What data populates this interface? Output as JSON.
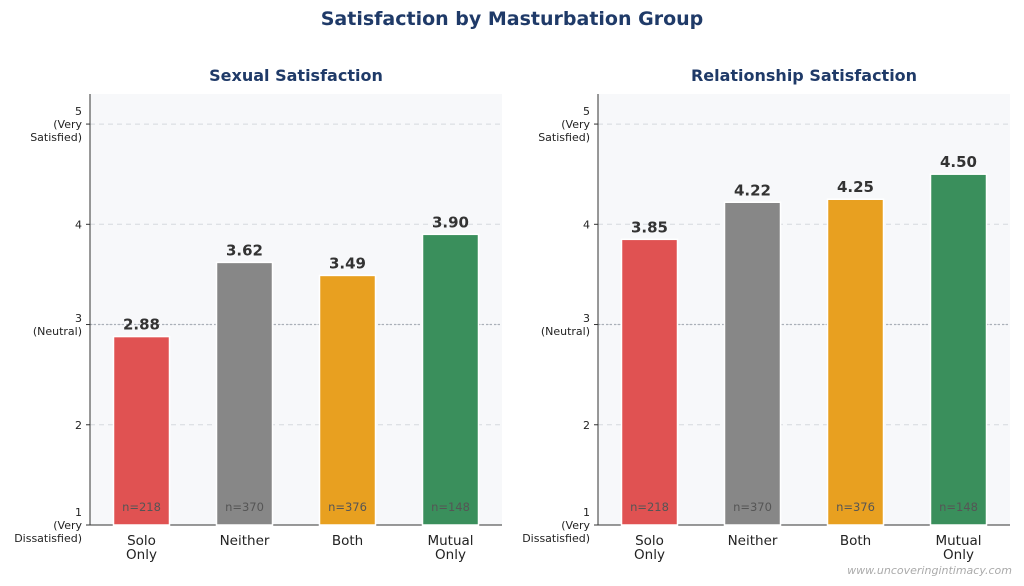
{
  "title": "Satisfaction by Masturbation Group",
  "watermark": "www.uncoveringintimacy.com",
  "chart_data": [
    {
      "type": "bar",
      "title": "Sexual Satisfaction",
      "categories": [
        "Solo\nOnly",
        "Neither",
        "Both",
        "Mutual\nOnly"
      ],
      "values": [
        2.88,
        3.62,
        3.49,
        3.9
      ],
      "value_labels": [
        "2.88",
        "3.62",
        "3.49",
        "3.90"
      ],
      "n_labels": [
        "n=218",
        "n=370",
        "n=376",
        "n=148"
      ],
      "colors": [
        "#e05252",
        "#878787",
        "#e8a020",
        "#3a8f5c"
      ],
      "ylim": [
        1,
        5.3
      ],
      "yticks": [
        {
          "value": 1,
          "label": "1\n(Very\nDissatisfied)"
        },
        2,
        {
          "value": 3,
          "label": "3\n(Neutral)"
        },
        4,
        {
          "value": 5,
          "label": "5\n(Very\nSatisfied)"
        }
      ],
      "grid": true,
      "reference_line": 3
    },
    {
      "type": "bar",
      "title": "Relationship Satisfaction",
      "categories": [
        "Solo\nOnly",
        "Neither",
        "Both",
        "Mutual\nOnly"
      ],
      "values": [
        3.85,
        4.22,
        4.25,
        4.5
      ],
      "value_labels": [
        "3.85",
        "4.22",
        "4.25",
        "4.50"
      ],
      "n_labels": [
        "n=218",
        "n=370",
        "n=376",
        "n=148"
      ],
      "colors": [
        "#e05252",
        "#878787",
        "#e8a020",
        "#3a8f5c"
      ],
      "ylim": [
        1,
        5.3
      ],
      "yticks": [
        {
          "value": 1,
          "label": "1\n(Very\nDissatisfied)"
        },
        2,
        {
          "value": 3,
          "label": "3\n(Neutral)"
        },
        4,
        {
          "value": 5,
          "label": "5\n(Very\nSatisfied)"
        }
      ],
      "grid": true,
      "reference_line": 3
    }
  ]
}
